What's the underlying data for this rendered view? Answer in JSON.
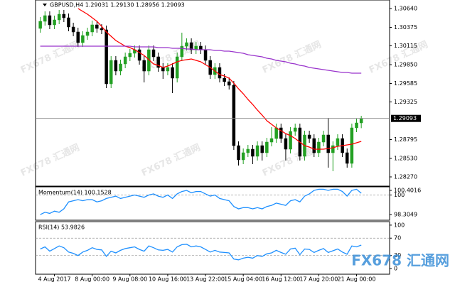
{
  "chart_data": [
    {
      "type": "candlestick",
      "title": "GBPUSD,H4  1.29031 1.29130 1.28956 1.29093",
      "up_color": "#22a022",
      "down_color": "#000000",
      "open": [
        1.3036,
        1.3046,
        1.3054,
        1.3041,
        1.3048,
        1.3056,
        1.3051,
        1.3038,
        1.3031,
        1.3016,
        1.3026,
        1.3031,
        1.3041,
        1.3036,
        1.3034,
        1.2958,
        1.2991,
        1.2976,
        1.2986,
        1.2996,
        1.3001,
        1.3006,
        1.2991,
        1.2976,
        1.3006,
        1.2996,
        1.2981,
        1.2976,
        1.2981,
        1.2966,
        1.2996,
        1.3011,
        1.3016,
        1.3006,
        1.3011,
        1.3006,
        1.2991,
        1.2971,
        1.2981,
        1.2966,
        1.2961,
        1.2956,
        1.2871,
        1.2851,
        1.2861,
        1.2866,
        1.2856,
        1.2871,
        1.2861,
        1.2876,
        1.2881,
        1.2896,
        1.2881,
        1.2866,
        1.2891,
        1.2896,
        1.2856,
        1.2886,
        1.2881,
        1.2861,
        1.2876,
        1.2886,
        1.2861,
        1.2871,
        1.2881,
        1.2861,
        1.2846,
        1.2896,
        1.2903
      ],
      "high": [
        1.3052,
        1.306,
        1.306,
        1.3054,
        1.3062,
        1.3062,
        1.3057,
        1.3044,
        1.3037,
        1.3032,
        1.3037,
        1.3047,
        1.3047,
        1.3042,
        1.304,
        1.2997,
        1.2997,
        1.2992,
        1.3002,
        1.3007,
        1.3012,
        1.3012,
        1.2997,
        1.3012,
        1.3012,
        1.3002,
        1.2987,
        1.2987,
        1.2987,
        1.3002,
        1.303,
        1.3022,
        1.3022,
        1.3017,
        1.3017,
        1.3012,
        1.2997,
        1.2987,
        1.2987,
        1.2972,
        1.2967,
        1.2962,
        1.2877,
        1.2867,
        1.2872,
        1.2872,
        1.2877,
        1.2877,
        1.2882,
        1.2897,
        1.2902,
        1.2902,
        1.2887,
        1.2897,
        1.2902,
        1.2902,
        1.2892,
        1.2892,
        1.2887,
        1.2882,
        1.2892,
        1.291,
        1.2877,
        1.2887,
        1.2887,
        1.2867,
        1.2902,
        1.2909,
        1.2913
      ],
      "low": [
        1.303,
        1.304,
        1.3035,
        1.3035,
        1.3042,
        1.3045,
        1.3032,
        1.3025,
        1.301,
        1.301,
        1.302,
        1.3025,
        1.303,
        1.3028,
        1.2952,
        1.2952,
        1.297,
        1.297,
        1.298,
        1.299,
        1.2995,
        1.2985,
        1.296,
        1.297,
        1.299,
        1.2975,
        1.2965,
        1.297,
        1.2945,
        1.296,
        1.299,
        1.3005,
        1.3,
        1.3,
        1.3,
        1.2985,
        1.2965,
        1.2965,
        1.296,
        1.2955,
        1.295,
        1.2865,
        1.2843,
        1.2845,
        1.2855,
        1.2845,
        1.285,
        1.285,
        1.2855,
        1.287,
        1.2875,
        1.2875,
        1.285,
        1.286,
        1.2885,
        1.285,
        1.285,
        1.2875,
        1.2855,
        1.2855,
        1.287,
        1.284,
        1.2835,
        1.2865,
        1.2855,
        1.284,
        1.284,
        1.289,
        1.28956
      ],
      "close": [
        1.3046,
        1.3054,
        1.3041,
        1.3048,
        1.3056,
        1.3051,
        1.3038,
        1.3031,
        1.3016,
        1.3026,
        1.3031,
        1.3041,
        1.3036,
        1.3034,
        1.2958,
        1.2991,
        1.2976,
        1.2986,
        1.2996,
        1.3001,
        1.3006,
        1.2991,
        1.2976,
        1.3006,
        1.2996,
        1.2981,
        1.2976,
        1.2981,
        1.2966,
        1.2996,
        1.3011,
        1.3016,
        1.3006,
        1.3011,
        1.3006,
        1.2991,
        1.2971,
        1.2981,
        1.2966,
        1.2961,
        1.2956,
        1.2871,
        1.2851,
        1.2861,
        1.2866,
        1.2856,
        1.2871,
        1.2861,
        1.2876,
        1.2881,
        1.2896,
        1.2881,
        1.2866,
        1.2891,
        1.2896,
        1.2856,
        1.2886,
        1.2881,
        1.2861,
        1.2876,
        1.2886,
        1.2861,
        1.2871,
        1.2881,
        1.2861,
        1.2846,
        1.2896,
        1.2903,
        1.29093
      ],
      "series": [
        {
          "color": "#ff0000",
          "values": [
            null,
            null,
            null,
            null,
            null,
            null,
            null,
            null,
            1.3064,
            1.306,
            1.3056,
            1.3051,
            1.3046,
            1.3039,
            1.3031,
            1.3025,
            1.3019,
            1.3015,
            1.3011,
            1.3009,
            1.3006,
            1.3002,
            1.2998,
            1.2992,
            1.2986,
            1.2984,
            1.2981,
            1.2983,
            1.2986,
            1.2989,
            1.2991,
            1.2992,
            1.2993,
            1.2991,
            1.2989,
            1.2985,
            1.2981,
            1.2976,
            1.2971,
            1.2969,
            1.2966,
            1.2959,
            1.2951,
            1.2944,
            1.2936,
            1.2929,
            1.2921,
            1.2914,
            1.2906,
            1.2901,
            1.2896,
            1.2892,
            1.2888,
            1.2885,
            1.2881,
            1.2876,
            1.2871,
            1.2869,
            1.2866,
            1.2866,
            1.2866,
            1.2867,
            1.2868,
            1.287,
            1.2871,
            1.2872,
            1.2873,
            1.2875,
            1.2877
          ]
        },
        {
          "color": "#9933cc",
          "values": [
            1.3011,
            1.3011,
            1.3011,
            1.3011,
            1.3011,
            1.3011,
            1.3011,
            1.3011,
            1.3011,
            1.3011,
            1.3011,
            1.3011,
            1.3011,
            1.3011,
            1.3011,
            1.3011,
            1.3011,
            1.3011,
            1.3011,
            1.3011,
            1.301,
            1.301,
            1.301,
            1.301,
            1.301,
            1.3009,
            1.3009,
            1.3009,
            1.3008,
            1.3008,
            1.3008,
            1.3007,
            1.3007,
            1.3006,
            1.3006,
            1.3006,
            1.3006,
            1.3005,
            1.3005,
            1.3004,
            1.3004,
            1.3003,
            1.3002,
            1.3001,
            1.2999,
            1.2998,
            1.2997,
            1.2996,
            1.2994,
            1.2993,
            1.2991,
            1.299,
            1.2989,
            1.2987,
            1.2986,
            1.2984,
            1.2983,
            1.2981,
            1.298,
            1.2979,
            1.2978,
            1.2977,
            1.2976,
            1.2975,
            1.2974,
            1.2974,
            1.2973,
            1.2973,
            1.2973
          ]
        }
      ],
      "xlim": [
        -1,
        74
      ],
      "ylim": [
        1.2814,
        1.3076
      ],
      "yticks": [
        {
          "value": 1.3064,
          "label": "1.30640"
        },
        {
          "value": 1.30375,
          "label": "1.30375"
        },
        {
          "value": 1.30115,
          "label": "1.30115"
        },
        {
          "value": 1.2985,
          "label": "1.29850"
        },
        {
          "value": 1.29585,
          "label": "1.29585"
        },
        {
          "value": 1.29325,
          "label": "1.29325"
        },
        {
          "value": 1.28795,
          "label": "1.28795"
        },
        {
          "value": 1.2853,
          "label": "1.28530"
        },
        {
          "value": 1.2827,
          "label": "1.28270"
        }
      ],
      "current_price": {
        "value": 1.29093,
        "label": "1.29093"
      }
    },
    {
      "type": "line",
      "title": "Momentum(14) 100.1528",
      "color": "#1e90ff",
      "values": [
        98.3,
        98.5,
        98.4,
        98.6,
        98.5,
        98.8,
        99.4,
        99.5,
        99.6,
        99.5,
        99.6,
        99.6,
        99.4,
        99.5,
        99.7,
        99.8,
        99.9,
        99.7,
        99.8,
        99.9,
        100.0,
        99.9,
        99.8,
        100.0,
        100.1,
        99.9,
        99.8,
        100.0,
        99.7,
        100.1,
        100.3,
        100.4,
        100.2,
        100.3,
        100.3,
        100.1,
        99.9,
        100.0,
        99.7,
        99.6,
        99.5,
        99.0,
        98.8,
        98.9,
        98.9,
        98.8,
        98.9,
        98.8,
        99.0,
        99.1,
        99.3,
        99.2,
        99.1,
        99.5,
        99.6,
        99.4,
        99.9,
        100.1,
        100.4,
        100.5,
        100.5,
        100.4,
        100.5,
        100.5,
        100.3,
        99.9,
        100.4,
        100.5,
        100.1528
      ],
      "ylim": [
        97.81,
        100.71
      ],
      "yticks": [
        100.4016,
        100,
        98.3049
      ],
      "levels": [
        100
      ]
    },
    {
      "type": "line",
      "title": "RSI(14) 53.9826",
      "color": "#1e90ff",
      "values": [
        45,
        50,
        40,
        46,
        52,
        48,
        38,
        35,
        30,
        38,
        42,
        48,
        44,
        43,
        28,
        40,
        36,
        42,
        46,
        48,
        50,
        44,
        40,
        52,
        48,
        43,
        42,
        44,
        38,
        50,
        55,
        56,
        50,
        52,
        50,
        44,
        38,
        42,
        38,
        37,
        36,
        22,
        20,
        24,
        26,
        24,
        30,
        28,
        34,
        36,
        42,
        37,
        33,
        45,
        47,
        32,
        45,
        44,
        37,
        42,
        46,
        37,
        41,
        45,
        38,
        33,
        52,
        50,
        53.9826
      ],
      "ylim": [
        -13,
        108
      ],
      "yticks": [
        100,
        70,
        30,
        0
      ],
      "levels": [
        70,
        30
      ],
      "xticks": [
        {
          "value": 3,
          "label": "4 Aug 2017"
        },
        {
          "value": 11,
          "label": "8 Aug 00:00"
        },
        {
          "value": 19,
          "label": "9 Aug 08:00"
        },
        {
          "value": 27,
          "label": "10 Aug 16:00"
        },
        {
          "value": 35,
          "label": "13 Aug 22:00"
        },
        {
          "value": 43,
          "label": "15 Aug 04:00"
        },
        {
          "value": 51,
          "label": "16 Aug 12:00"
        },
        {
          "value": 59,
          "label": "17 Aug 20:00"
        },
        {
          "value": 67,
          "label": "21 Aug 00:00"
        }
      ]
    }
  ],
  "watermark": "FX678 汇通网"
}
